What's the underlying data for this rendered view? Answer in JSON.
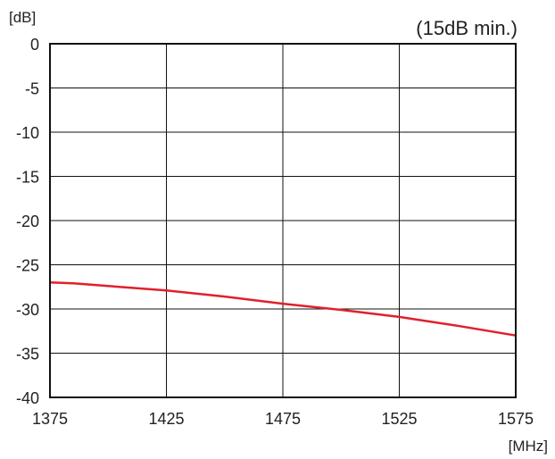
{
  "chart_data": {
    "type": "line",
    "title": "",
    "annotation": "(15dB min.)",
    "xlabel": "[MHz]",
    "ylabel": "[dB]",
    "xlim": [
      1375,
      1575
    ],
    "ylim": [
      -40,
      0
    ],
    "x_ticks": [
      1375,
      1425,
      1475,
      1525,
      1575
    ],
    "y_ticks": [
      0,
      -5,
      -10,
      -15,
      -20,
      -25,
      -30,
      -35,
      -40
    ],
    "x_tick_labels": [
      "1375",
      "1425",
      "1475",
      "1525",
      "1575"
    ],
    "y_tick_labels": [
      "0",
      "-5",
      "-10",
      "-15",
      "-20",
      "-25",
      "-30",
      "-35",
      "-40"
    ],
    "grid": true,
    "legend": "none",
    "series": [
      {
        "color": "#e0202a",
        "x": [
          1375,
          1385,
          1400,
          1425,
          1450,
          1475,
          1500,
          1525,
          1550,
          1575
        ],
        "y": [
          -27.0,
          -27.1,
          -27.4,
          -27.9,
          -28.6,
          -29.4,
          -30.1,
          -30.9,
          -31.9,
          -33.0
        ]
      }
    ]
  }
}
